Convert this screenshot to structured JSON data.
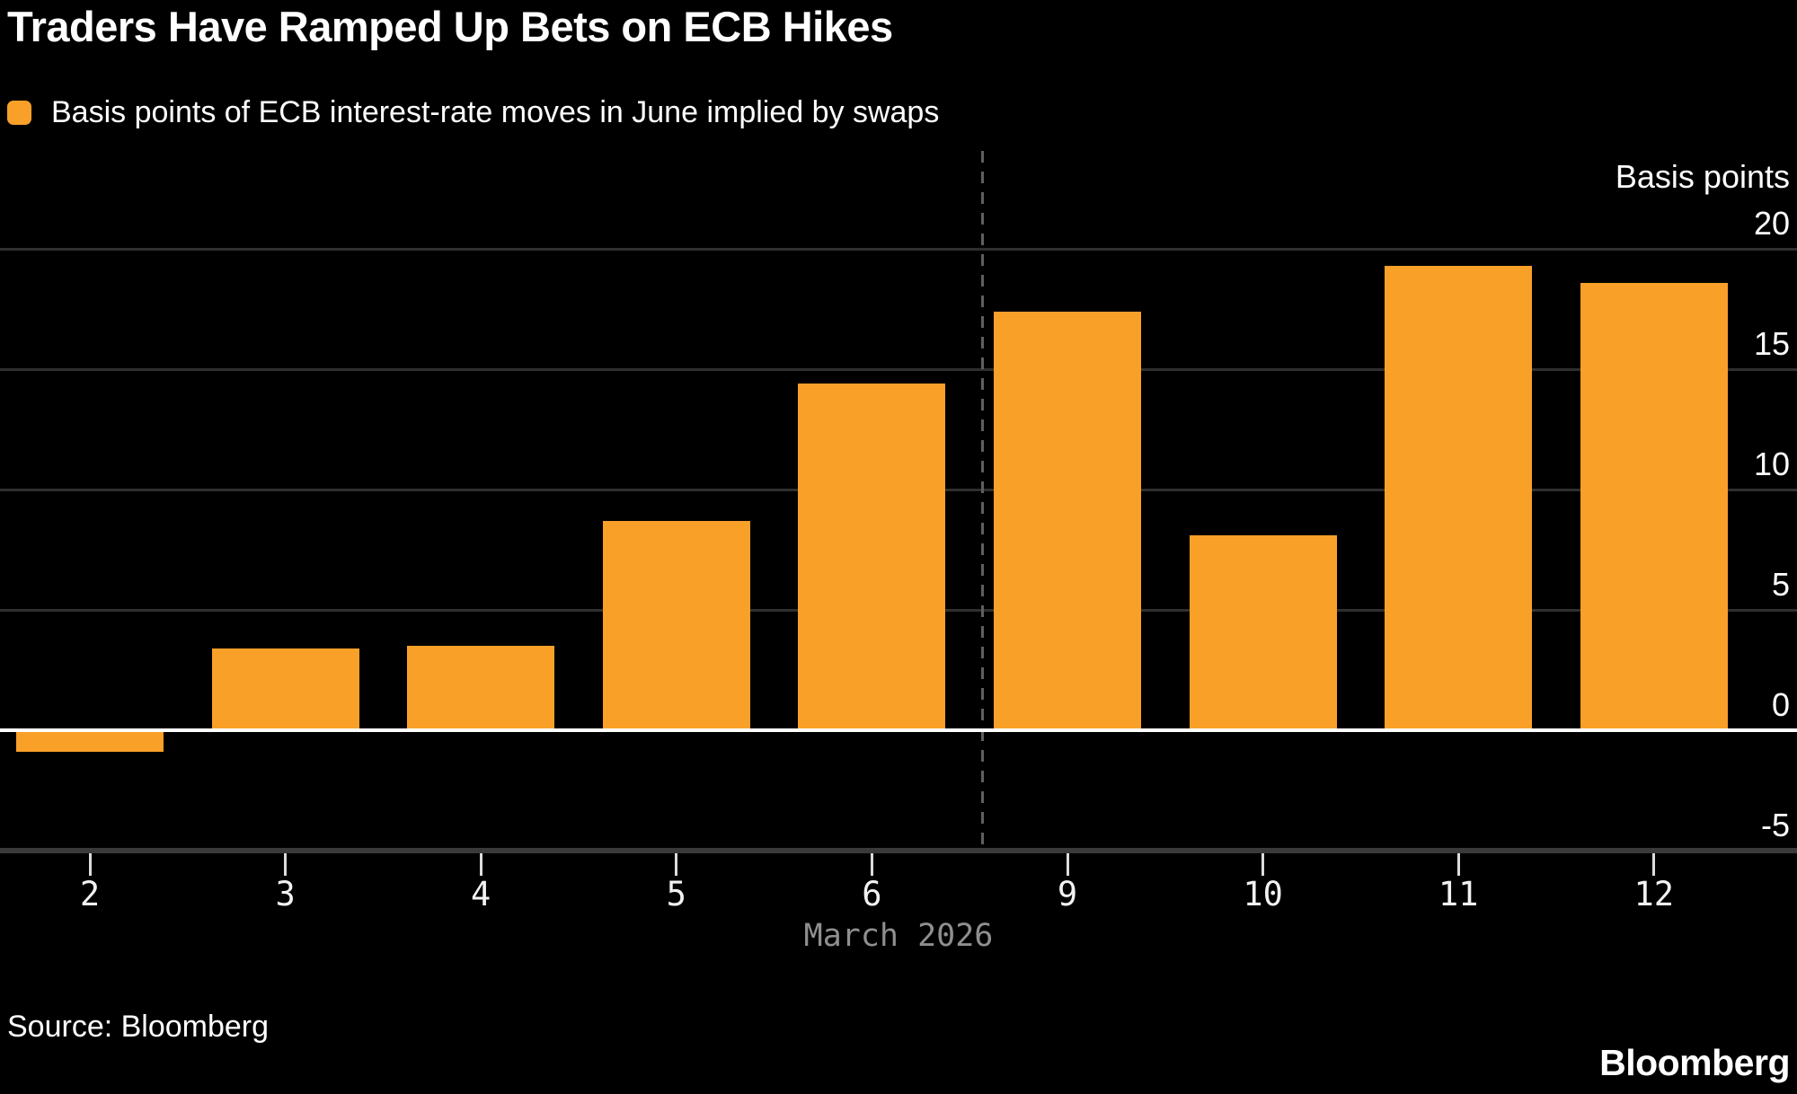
{
  "header": {
    "title": "Traders Have Ramped Up Bets on ECB Hikes",
    "legend_label": "Basis points of ECB interest-rate moves in June implied by swaps"
  },
  "chart_data": {
    "type": "bar",
    "title": "Traders Have Ramped Up Bets on ECB Hikes",
    "series_label": "Basis points of ECB interest-rate moves in June implied by swaps",
    "categories": [
      "2",
      "3",
      "4",
      "5",
      "6",
      "9",
      "10",
      "11",
      "12"
    ],
    "values": [
      -0.9,
      3.4,
      3.5,
      8.7,
      14.4,
      17.4,
      8.1,
      19.3,
      18.6
    ],
    "xlabel": "March 2026",
    "yaxis_label": "Basis points",
    "yticks": [
      20,
      15,
      10,
      5,
      0,
      -5
    ],
    "ylim": [
      -5,
      20
    ],
    "grid": true,
    "legend_position": "top-left",
    "bar_color": "#f9a028",
    "gridline_color": "#2f2f2f",
    "zero_line_color": "#ffffff",
    "separator": {
      "style": "dashed",
      "between": [
        "6",
        "9"
      ]
    }
  },
  "footer": {
    "source": "Source: Bloomberg",
    "brand": "Bloomberg"
  }
}
